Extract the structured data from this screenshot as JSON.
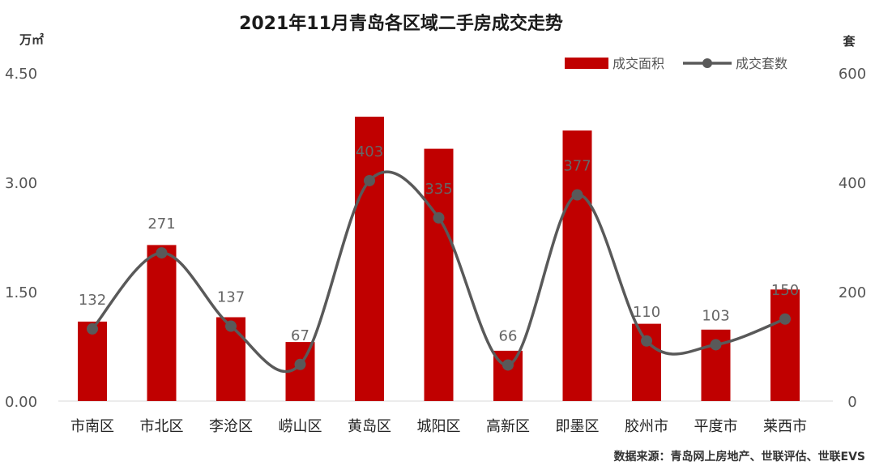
{
  "chart_data": {
    "type": "bar",
    "title": "2021年11月青岛各区域二手房成交走势",
    "y_left_unit": "万㎡",
    "y_right_unit": "套",
    "y_left_ticks": [
      "4.50",
      "3.00",
      "1.50",
      "0.00"
    ],
    "y_right_ticks": [
      "600",
      "400",
      "200",
      "0"
    ],
    "ylim_left": [
      0,
      4.5
    ],
    "ylim_right": [
      0,
      600
    ],
    "categories": [
      "市南区",
      "市北区",
      "李沧区",
      "崂山区",
      "黄岛区",
      "城阳区",
      "高新区",
      "即墨区",
      "胶州市",
      "平度市",
      "莱西市"
    ],
    "series": [
      {
        "name": "成交面积",
        "type": "bar",
        "axis": "left",
        "color": "#c00000",
        "values": [
          1.09,
          2.14,
          1.15,
          0.81,
          3.9,
          3.46,
          0.69,
          3.71,
          1.06,
          0.98,
          1.53
        ]
      },
      {
        "name": "成交套数",
        "type": "line",
        "axis": "right",
        "color": "#595959",
        "smooth": true,
        "values": [
          132,
          271,
          137,
          67,
          403,
          335,
          66,
          377,
          110,
          103,
          150
        ]
      }
    ],
    "legend_position": "top-right",
    "grid": false,
    "source": "数据来源：青岛网上房地产、世联评估、世联EVS"
  }
}
